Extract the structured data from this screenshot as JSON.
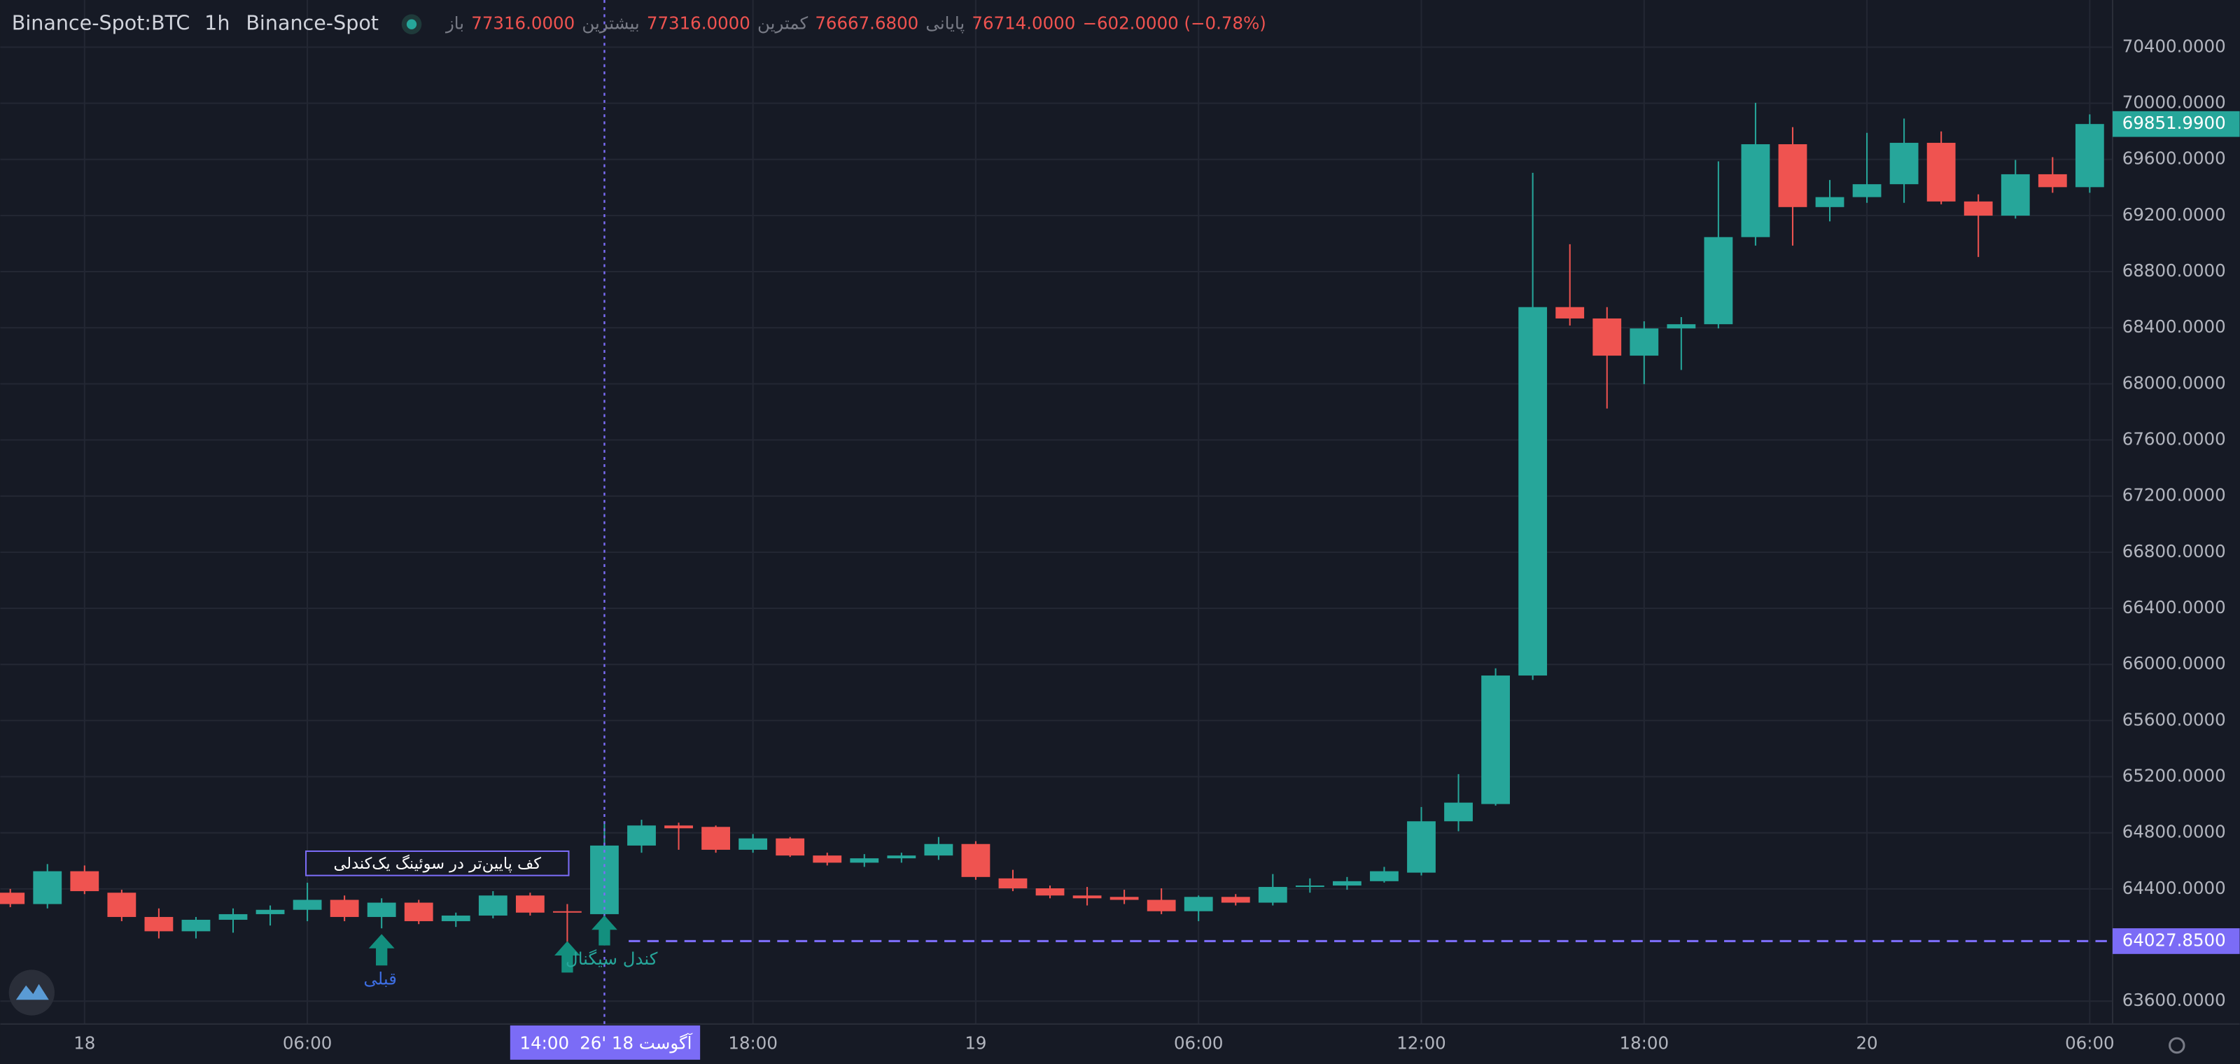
{
  "header": {
    "symbol": "Binance-Spot:BTC",
    "interval": "1h",
    "exchange": "Binance-Spot",
    "ohlc": [
      {
        "label": "باز",
        "value": "77316.0000"
      },
      {
        "label": "بیشترین",
        "value": "77316.0000"
      },
      {
        "label": "کمترین",
        "value": "76667.6800"
      },
      {
        "label": "پایانی",
        "value": "76714.0000"
      }
    ],
    "change": "−602.0000 (−0.78%)"
  },
  "chart_data": {
    "type": "candlestick",
    "categories": [
      null,
      null,
      "18",
      null,
      null,
      null,
      null,
      null,
      "06:00",
      null,
      null,
      null,
      null,
      null,
      null,
      null,
      null,
      null,
      null,
      null,
      "18:00",
      null,
      null,
      null,
      null,
      null,
      "19",
      null,
      null,
      null,
      null,
      null,
      "06:00",
      null,
      null,
      null,
      null,
      null,
      "12:00",
      null,
      null,
      null,
      null,
      null,
      "18:00",
      null,
      null,
      null,
      null,
      null,
      "20",
      null,
      null,
      null,
      null,
      null,
      "06:00"
    ],
    "open": [
      64373,
      64292,
      64526,
      64373,
      64200,
      64098,
      64180,
      64220,
      64251,
      64322,
      64200,
      64302,
      64170,
      64210,
      64353,
      64241,
      64220,
      64709,
      64852,
      64842,
      64679,
      64760,
      64638,
      64587,
      64618,
      64638,
      64720,
      64475,
      64404,
      64353,
      64343,
      64322,
      64241,
      64343,
      64302,
      64414,
      64424,
      64455,
      64516,
      64882,
      65005,
      65921,
      68547,
      68466,
      68201,
      68395,
      68425,
      69046,
      69708,
      69260,
      69331,
      69423,
      69718,
      69300,
      69199,
      69494,
      69402
    ],
    "high": [
      64400,
      64577,
      64567,
      64394,
      64261,
      64200,
      64261,
      64282,
      64444,
      64353,
      64333,
      64322,
      64231,
      64384,
      64373,
      64292,
      64865,
      64893,
      64872,
      64852,
      64791,
      64770,
      64658,
      64648,
      64658,
      64770,
      64740,
      64536,
      64424,
      64414,
      64394,
      64404,
      64353,
      64363,
      64506,
      64475,
      64485,
      64557,
      64984,
      65218,
      65972,
      69504,
      68995,
      68547,
      68446,
      68476,
      69586,
      70003,
      69830,
      69453,
      69789,
      69891,
      69799,
      69351,
      69596,
      69616,
      69921
    ],
    "low": [
      64270,
      64261,
      64363,
      64170,
      64047,
      64047,
      64088,
      64139,
      64170,
      64170,
      64119,
      64149,
      64129,
      64190,
      64210,
      64017,
      64068,
      64658,
      64679,
      64658,
      64658,
      64628,
      64567,
      64557,
      64587,
      64607,
      64465,
      64384,
      64333,
      64282,
      64292,
      64220,
      64170,
      64282,
      64282,
      64373,
      64394,
      64445,
      64496,
      64811,
      64994,
      65890,
      68415,
      67824,
      67998,
      68099,
      68395,
      68985,
      68985,
      69158,
      69290,
      69290,
      69280,
      68904,
      69178,
      69362,
      69362
    ],
    "close": [
      64292,
      64526,
      64384,
      64200,
      64098,
      64180,
      64220,
      64251,
      64322,
      64200,
      64302,
      64170,
      64210,
      64353,
      64231,
      64231,
      64709,
      64852,
      64832,
      64679,
      64760,
      64638,
      64587,
      64618,
      64638,
      64720,
      64485,
      64404,
      64353,
      64333,
      64322,
      64241,
      64343,
      64302,
      64414,
      64424,
      64455,
      64526,
      64882,
      65015,
      65921,
      68547,
      68466,
      68201,
      68395,
      68425,
      69046,
      69708,
      69260,
      69331,
      69423,
      69718,
      69300,
      69199,
      69494,
      69402,
      69851.99
    ],
    "up_color": "#26a69a",
    "down_color": "#ef5350",
    "ylim": [
      63437,
      70736
    ],
    "yticks": [
      {
        "value": 70400,
        "label": "70400.0000"
      },
      {
        "value": 70000,
        "label": "70000.0000"
      },
      {
        "value": 69600,
        "label": "69600.0000"
      },
      {
        "value": 69200,
        "label": "69200.0000"
      },
      {
        "value": 68800,
        "label": "68800.0000"
      },
      {
        "value": 68400,
        "label": "68400.0000"
      },
      {
        "value": 68000,
        "label": "68000.0000"
      },
      {
        "value": 67600,
        "label": "67600.0000"
      },
      {
        "value": 67200,
        "label": "67200.0000"
      },
      {
        "value": 66800,
        "label": "66800.0000"
      },
      {
        "value": 66400,
        "label": "66400.0000"
      },
      {
        "value": 66000,
        "label": "66000.0000"
      },
      {
        "value": 65600,
        "label": "65600.0000"
      },
      {
        "value": 65200,
        "label": "65200.0000"
      },
      {
        "value": 64800,
        "label": "64800.0000"
      },
      {
        "value": 64400,
        "label": "64400.0000"
      },
      {
        "value": 63600,
        "label": "63600.0000"
      }
    ],
    "grid": true,
    "price_line": {
      "value": 64027.85,
      "label": "64027.8500",
      "color": "#7b6cf6"
    },
    "last_price": {
      "value": 69851.99,
      "label": "69851.9900"
    },
    "crosshair_labels": [
      "14:00",
      "26' آگوست 18"
    ],
    "annotations": [
      "کف پایین‌تر در سوئینگ یک‌کندلی",
      "قبلی",
      "کندل سیگنال"
    ]
  }
}
